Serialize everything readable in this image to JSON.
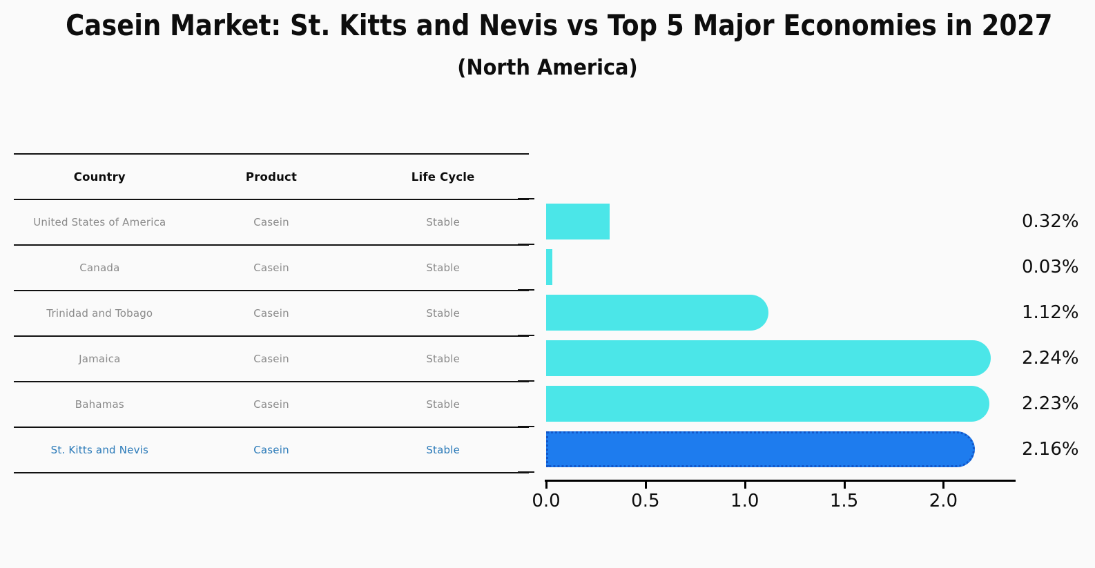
{
  "header": {
    "title": "Casein Market: St. Kitts and Nevis vs Top 5 Major Economies in 2027",
    "subtitle": "(North America)"
  },
  "table": {
    "headers": [
      "Country",
      "Product",
      "Life Cycle"
    ],
    "rows": [
      {
        "country": "United States of America",
        "product": "Casein",
        "life_cycle": "Stable"
      },
      {
        "country": "Canada",
        "product": "Casein",
        "life_cycle": "Stable"
      },
      {
        "country": "Trinidad and Tobago",
        "product": "Casein",
        "life_cycle": "Stable"
      },
      {
        "country": "Jamaica",
        "product": "Casein",
        "life_cycle": "Stable"
      },
      {
        "country": "Bahamas",
        "product": "Casein",
        "life_cycle": "Stable"
      },
      {
        "country": "St. Kitts and Nevis",
        "product": "Casein",
        "life_cycle": "Stable"
      }
    ]
  },
  "chart_data": {
    "type": "bar",
    "orientation": "horizontal",
    "title": "Casein Market: St. Kitts and Nevis vs Top 5 Major Economies in 2027",
    "subtitle": "(North America)",
    "categories": [
      "United States of America",
      "Canada",
      "Trinidad and Tobago",
      "Jamaica",
      "Bahamas",
      "St. Kitts and Nevis"
    ],
    "values": [
      0.32,
      0.03,
      1.12,
      2.24,
      2.23,
      2.16
    ],
    "value_labels": [
      "0.32%",
      "0.03%",
      "1.12%",
      "2.24%",
      "2.23%",
      "2.16%"
    ],
    "unit": "%",
    "x_ticks": [
      0.0,
      0.5,
      1.0,
      1.5,
      2.0
    ],
    "x_tick_labels": [
      "0.0",
      "0.5",
      "1.0",
      "1.5",
      "2.0"
    ],
    "xlim": [
      0,
      2.36
    ],
    "grid": false,
    "legend": null,
    "highlight_index": 5,
    "colors": {
      "bar": "#4be6e8",
      "highlight_bar": "#1e7cee",
      "highlight_border": "#1256c8",
      "highlight_text": "#2979b8",
      "row_text": "#8a8a8a",
      "axis": "#000000"
    }
  }
}
